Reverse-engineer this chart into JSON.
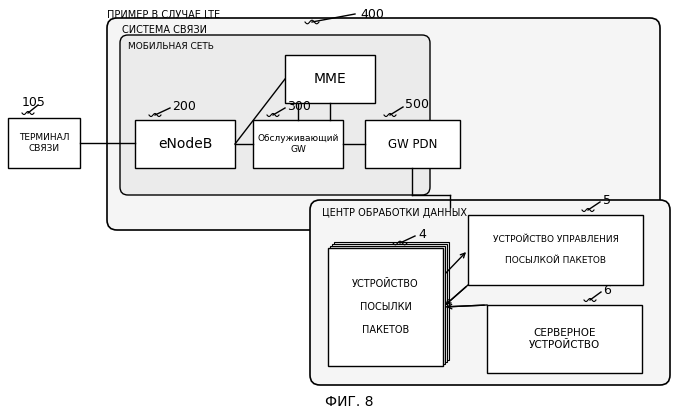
{
  "title_top": "ПРИМЕР В СЛУЧАЕ LTE",
  "fig_label": "ФИГ. 8",
  "bg_color": "#ffffff",
  "system_label": "СИСТЕМА СВЯЗИ",
  "mobile_label": "МОБИЛЬНАЯ СЕТЬ",
  "datacenter_label": "ЦЕНТР ОБРАБОТКИ ДАННЫХ",
  "terminal_label": "ТЕРМИНАЛ\nСВЯЗИ",
  "mme_label": "MME",
  "enodeb_label": "eNodeB",
  "serving_gw_label": "Обслуживающий\nGW",
  "gw_pdn_label": "GW PDN",
  "packet_device_label": "УСТРОЙСТВО\n\nПОСЫЛКИ\n\nПАКЕТОВ",
  "packet_mgmt_label": "УСТРОЙСТВО УПРАВЛЕНИЯ\n\nПОСЫЛКОЙ ПАКЕТОВ",
  "server_label": "СЕРВЕРНОЕ\nУСТРОЙСТВО",
  "num_400": "400",
  "num_105": "105",
  "num_200": "200",
  "num_300": "300",
  "num_500": "500",
  "num_4": "4",
  "num_5": "5",
  "num_6": "6"
}
